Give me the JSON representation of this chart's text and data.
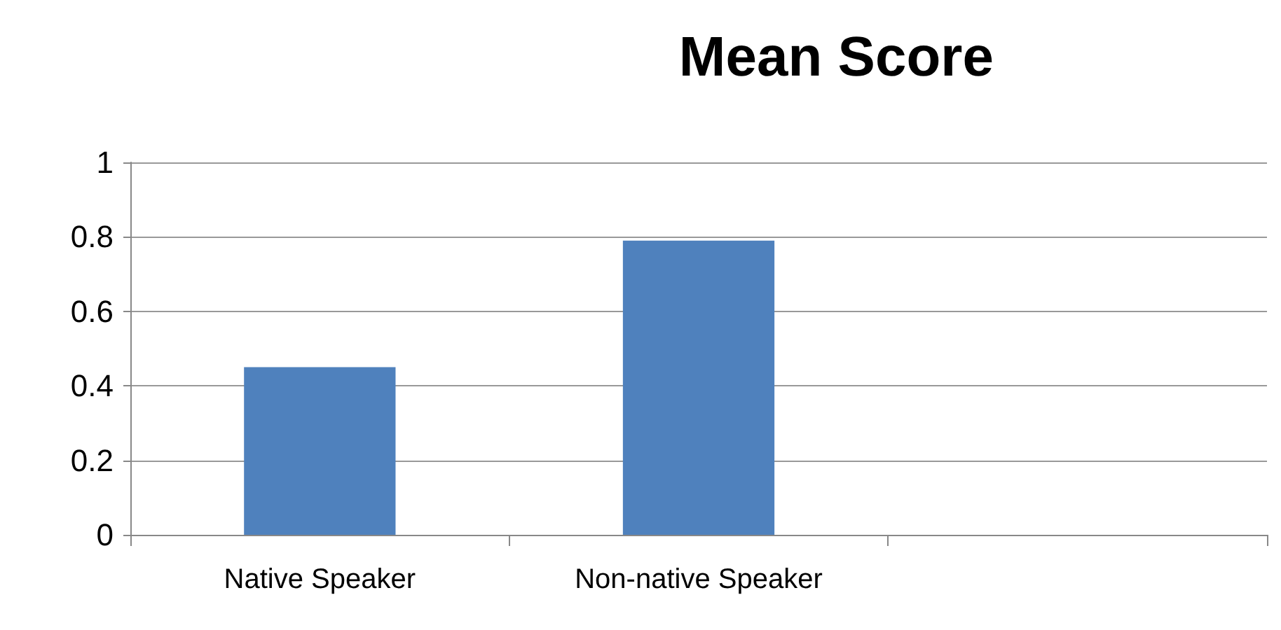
{
  "chart_data": {
    "type": "bar",
    "title": "Mean Score",
    "categories": [
      "Native Speaker",
      "Non-native Speaker",
      null
    ],
    "values": [
      0.45,
      0.79,
      null
    ],
    "color": "#4f81bd",
    "ylim": [
      0,
      1
    ],
    "yticks": [
      0,
      0.2,
      0.4,
      0.6,
      0.8,
      1
    ],
    "grid": "y"
  }
}
